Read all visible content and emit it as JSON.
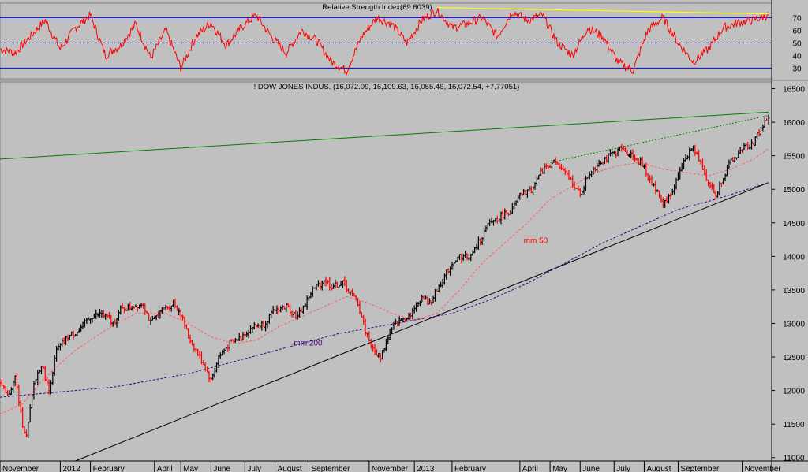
{
  "chart_data": [
    {
      "type": "line",
      "title": "Relative Strength Index(69.6039)",
      "ylim": [
        24,
        79
      ],
      "y_ticks": [
        30,
        40,
        50,
        60,
        70
      ],
      "reference_lines": [
        {
          "value": 70,
          "style": "solid",
          "color": "#0000ff"
        },
        {
          "value": 50,
          "style": "dashed",
          "color": "#000080"
        },
        {
          "value": 30,
          "style": "solid",
          "color": "#0000ff"
        }
      ],
      "series": [
        {
          "color": "#ff0000",
          "anchors": [
            [
              0,
              45
            ],
            [
              4,
              42
            ],
            [
              8,
              55
            ],
            [
              12,
              68
            ],
            [
              16,
              45
            ],
            [
              20,
              62
            ],
            [
              24,
              72
            ],
            [
              28,
              40
            ],
            [
              32,
              48
            ],
            [
              36,
              65
            ],
            [
              40,
              38
            ],
            [
              44,
              60
            ],
            [
              48,
              30
            ],
            [
              52,
              55
            ],
            [
              56,
              66
            ],
            [
              60,
              48
            ],
            [
              64,
              62
            ],
            [
              68,
              72
            ],
            [
              72,
              55
            ],
            [
              76,
              42
            ],
            [
              80,
              60
            ],
            [
              84,
              52
            ],
            [
              88,
              35
            ],
            [
              92,
              28
            ],
            [
              96,
              55
            ],
            [
              100,
              70
            ],
            [
              104,
              65
            ],
            [
              108,
              50
            ],
            [
              112,
              68
            ],
            [
              116,
              76
            ],
            [
              120,
              62
            ],
            [
              124,
              65
            ],
            [
              128,
              70
            ],
            [
              132,
              55
            ],
            [
              136,
              75
            ],
            [
              140,
              68
            ],
            [
              144,
              72
            ],
            [
              148,
              50
            ],
            [
              152,
              40
            ],
            [
              156,
              62
            ],
            [
              160,
              55
            ],
            [
              164,
              35
            ],
            [
              168,
              28
            ],
            [
              172,
              60
            ],
            [
              176,
              70
            ],
            [
              180,
              50
            ],
            [
              184,
              35
            ],
            [
              188,
              45
            ],
            [
              192,
              62
            ],
            [
              196,
              66
            ],
            [
              200,
              68
            ],
            [
              204,
              72
            ]
          ],
          "trendline": {
            "from": [
              116,
              78
            ],
            "to": [
              204,
              73
            ],
            "color": "#ffff00"
          }
        }
      ]
    },
    {
      "type": "line",
      "title": "! DOW JONES INDUS. (16,072.09, 16,109.63, 16,055.46, 16,072.54, +7.77051)",
      "y_label_side": "right",
      "ylim": [
        10950,
        16600
      ],
      "y_ticks": [
        11000,
        11500,
        12000,
        12500,
        13000,
        13500,
        14000,
        14500,
        15000,
        15500,
        16000,
        16500
      ],
      "x_labels": [
        "November",
        "2012",
        "February",
        "April",
        "May",
        "June",
        "July",
        "August",
        "September",
        "November",
        "2013",
        "February",
        "April",
        "May",
        "June",
        "July",
        "August",
        "September",
        "November"
      ],
      "x_label_positions": [
        0,
        16,
        24,
        41,
        48,
        56,
        65,
        73,
        82,
        98,
        110,
        120,
        138,
        146,
        154,
        163,
        171,
        180,
        197
      ],
      "x_range": [
        0,
        204
      ],
      "annotations": [
        {
          "text": "mm 50",
          "x": 139,
          "y": 14200,
          "color": "#ff0000"
        },
        {
          "text": "mm 200",
          "x": 78,
          "y": 12670,
          "color": "#400080"
        }
      ],
      "series": [
        {
          "name": "price",
          "color": "#000000",
          "anchors": [
            [
              0,
              12100
            ],
            [
              2,
              11900
            ],
            [
              4,
              12200
            ],
            [
              6,
              11500
            ],
            [
              7,
              11300
            ],
            [
              9,
              12100
            ],
            [
              11,
              12400
            ],
            [
              13,
              12000
            ],
            [
              15,
              12600
            ],
            [
              18,
              12800
            ],
            [
              21,
              12900
            ],
            [
              24,
              13100
            ],
            [
              27,
              13150
            ],
            [
              30,
              13000
            ],
            [
              32,
              13200
            ],
            [
              35,
              13250
            ],
            [
              38,
              13300
            ],
            [
              40,
              13000
            ],
            [
              43,
              13200
            ],
            [
              46,
              13300
            ],
            [
              48,
              13150
            ],
            [
              50,
              12800
            ],
            [
              52,
              12600
            ],
            [
              54,
              12400
            ],
            [
              56,
              12150
            ],
            [
              58,
              12500
            ],
            [
              61,
              12700
            ],
            [
              64,
              12800
            ],
            [
              67,
              12950
            ],
            [
              70,
              13000
            ],
            [
              73,
              13200
            ],
            [
              76,
              13250
            ],
            [
              79,
              13100
            ],
            [
              81,
              13300
            ],
            [
              83,
              13500
            ],
            [
              86,
              13650
            ],
            [
              88,
              13550
            ],
            [
              91,
              13600
            ],
            [
              93,
              13450
            ],
            [
              95,
              13300
            ],
            [
              97,
              12900
            ],
            [
              99,
              12600
            ],
            [
              101,
              12500
            ],
            [
              103,
              12800
            ],
            [
              105,
              13000
            ],
            [
              108,
              13100
            ],
            [
              110,
              13200
            ],
            [
              112,
              13400
            ],
            [
              114,
              13300
            ],
            [
              116,
              13500
            ],
            [
              118,
              13700
            ],
            [
              120,
              13900
            ],
            [
              122,
              14000
            ],
            [
              125,
              14000
            ],
            [
              128,
              14300
            ],
            [
              130,
              14500
            ],
            [
              133,
              14600
            ],
            [
              136,
              14700
            ],
            [
              138,
              14900
            ],
            [
              141,
              15000
            ],
            [
              144,
              15300
            ],
            [
              147,
              15400
            ],
            [
              149,
              15300
            ],
            [
              152,
              15100
            ],
            [
              154,
              14900
            ],
            [
              156,
              15200
            ],
            [
              159,
              15400
            ],
            [
              162,
              15500
            ],
            [
              165,
              15600
            ],
            [
              168,
              15500
            ],
            [
              170,
              15400
            ],
            [
              172,
              15200
            ],
            [
              174,
              15000
            ],
            [
              176,
              14800
            ],
            [
              178,
              14900
            ],
            [
              180,
              15200
            ],
            [
              182,
              15500
            ],
            [
              184,
              15600
            ],
            [
              186,
              15400
            ],
            [
              188,
              15100
            ],
            [
              190,
              14900
            ],
            [
              192,
              15200
            ],
            [
              194,
              15400
            ],
            [
              197,
              15600
            ],
            [
              200,
              15700
            ],
            [
              202,
              15900
            ],
            [
              204,
              16072
            ]
          ]
        },
        {
          "name": "mm 50",
          "color": "#ff6060",
          "anchors": [
            [
              0,
              11650
            ],
            [
              6,
              11800
            ],
            [
              12,
              12200
            ],
            [
              20,
              12600
            ],
            [
              28,
              12900
            ],
            [
              36,
              13150
            ],
            [
              44,
              13150
            ],
            [
              50,
              13000
            ],
            [
              56,
              12800
            ],
            [
              62,
              12700
            ],
            [
              68,
              12750
            ],
            [
              74,
              12950
            ],
            [
              80,
              13100
            ],
            [
              86,
              13250
            ],
            [
              92,
              13400
            ],
            [
              98,
              13300
            ],
            [
              104,
              13150
            ],
            [
              110,
              13050
            ],
            [
              116,
              13150
            ],
            [
              122,
              13500
            ],
            [
              128,
              13900
            ],
            [
              134,
              14200
            ],
            [
              140,
              14500
            ],
            [
              146,
              14850
            ],
            [
              152,
              15050
            ],
            [
              158,
              15250
            ],
            [
              164,
              15350
            ],
            [
              170,
              15400
            ],
            [
              176,
              15300
            ],
            [
              182,
              15250
            ],
            [
              188,
              15200
            ],
            [
              194,
              15300
            ],
            [
              200,
              15450
            ],
            [
              204,
              15600
            ]
          ]
        },
        {
          "name": "mm 200",
          "color": "#400080",
          "anchors": [
            [
              0,
              11900
            ],
            [
              10,
              11950
            ],
            [
              20,
              12000
            ],
            [
              30,
              12050
            ],
            [
              40,
              12150
            ],
            [
              50,
              12250
            ],
            [
              60,
              12400
            ],
            [
              70,
              12550
            ],
            [
              80,
              12700
            ],
            [
              90,
              12850
            ],
            [
              100,
              12950
            ],
            [
              110,
              13050
            ],
            [
              120,
              13150
            ],
            [
              130,
              13350
            ],
            [
              140,
              13600
            ],
            [
              150,
              13900
            ],
            [
              160,
              14200
            ],
            [
              170,
              14450
            ],
            [
              180,
              14700
            ],
            [
              190,
              14850
            ],
            [
              204,
              15100
            ]
          ]
        }
      ],
      "trendlines": [
        {
          "from": [
            20,
            10950
          ],
          "to": [
            204,
            15100
          ],
          "color": "#000000"
        },
        {
          "from": [
            0,
            15450
          ],
          "to": [
            204,
            16150
          ],
          "color": "#008000"
        },
        {
          "from": [
            146,
            15400
          ],
          "to": [
            204,
            16100
          ],
          "color": "#008000",
          "style": "dotted"
        }
      ]
    }
  ]
}
